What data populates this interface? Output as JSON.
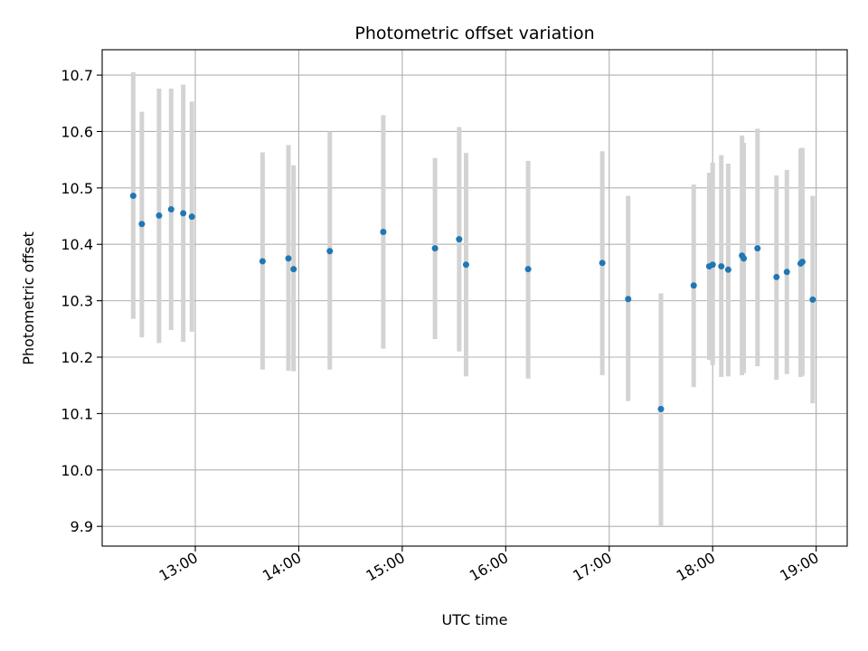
{
  "chart_data": {
    "type": "scatter",
    "title": "Photometric offset variation",
    "xlabel": "UTC time",
    "ylabel": "Photometric offset",
    "grid": true,
    "xlim": [
      "12:06",
      "19:18"
    ],
    "ylim": [
      9.865,
      10.745
    ],
    "x_ticks": [
      "13:00",
      "14:00",
      "15:00",
      "16:00",
      "17:00",
      "18:00",
      "19:00"
    ],
    "y_ticks": [
      "9.9",
      "10.0",
      "10.1",
      "10.2",
      "10.3",
      "10.4",
      "10.5",
      "10.6",
      "10.7"
    ],
    "point_color": "#1f77b4",
    "errorbar_color": "#d3d3d3",
    "points": [
      {
        "x": "12:24",
        "y": 10.486,
        "low": 10.268,
        "high": 10.705
      },
      {
        "x": "12:29",
        "y": 10.436,
        "low": 10.235,
        "high": 10.635
      },
      {
        "x": "12:39",
        "y": 10.451,
        "low": 10.225,
        "high": 10.676
      },
      {
        "x": "12:46",
        "y": 10.462,
        "low": 10.248,
        "high": 10.676
      },
      {
        "x": "12:53",
        "y": 10.455,
        "low": 10.227,
        "high": 10.683
      },
      {
        "x": "12:58",
        "y": 10.449,
        "low": 10.245,
        "high": 10.653
      },
      {
        "x": "13:39",
        "y": 10.37,
        "low": 10.178,
        "high": 10.563
      },
      {
        "x": "13:54",
        "y": 10.375,
        "low": 10.176,
        "high": 10.576
      },
      {
        "x": "13:57",
        "y": 10.356,
        "low": 10.175,
        "high": 10.54
      },
      {
        "x": "14:18",
        "y": 10.388,
        "low": 10.178,
        "high": 10.6
      },
      {
        "x": "14:49",
        "y": 10.422,
        "low": 10.215,
        "high": 10.629
      },
      {
        "x": "15:19",
        "y": 10.393,
        "low": 10.232,
        "high": 10.553
      },
      {
        "x": "15:33",
        "y": 10.409,
        "low": 10.21,
        "high": 10.608
      },
      {
        "x": "15:37",
        "y": 10.364,
        "low": 10.166,
        "high": 10.562
      },
      {
        "x": "16:13",
        "y": 10.356,
        "low": 10.162,
        "high": 10.548
      },
      {
        "x": "16:56",
        "y": 10.367,
        "low": 10.168,
        "high": 10.565
      },
      {
        "x": "17:11",
        "y": 10.303,
        "low": 10.122,
        "high": 10.486
      },
      {
        "x": "17:30",
        "y": 10.108,
        "low": 9.9,
        "high": 10.313
      },
      {
        "x": "17:49",
        "y": 10.327,
        "low": 10.147,
        "high": 10.506
      },
      {
        "x": "17:58",
        "y": 10.361,
        "low": 10.195,
        "high": 10.527
      },
      {
        "x": "18:00",
        "y": 10.364,
        "low": 10.186,
        "high": 10.545
      },
      {
        "x": "18:05",
        "y": 10.361,
        "low": 10.165,
        "high": 10.558
      },
      {
        "x": "18:09",
        "y": 10.355,
        "low": 10.166,
        "high": 10.543
      },
      {
        "x": "18:17",
        "y": 10.38,
        "low": 10.168,
        "high": 10.593
      },
      {
        "x": "18:18",
        "y": 10.375,
        "low": 10.172,
        "high": 10.58
      },
      {
        "x": "18:26",
        "y": 10.393,
        "low": 10.184,
        "high": 10.605
      },
      {
        "x": "18:37",
        "y": 10.342,
        "low": 10.16,
        "high": 10.522
      },
      {
        "x": "18:43",
        "y": 10.351,
        "low": 10.17,
        "high": 10.532
      },
      {
        "x": "18:51",
        "y": 10.366,
        "low": 10.165,
        "high": 10.57
      },
      {
        "x": "18:52",
        "y": 10.369,
        "low": 10.167,
        "high": 10.571
      },
      {
        "x": "18:58",
        "y": 10.302,
        "low": 10.118,
        "high": 10.486
      }
    ]
  }
}
